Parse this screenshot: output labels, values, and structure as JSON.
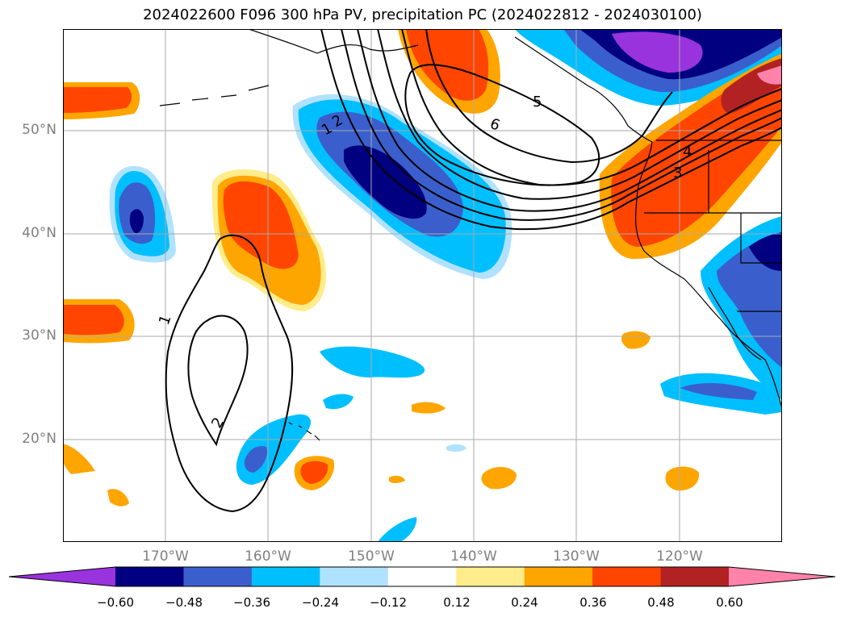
{
  "title": "2024022600 F096 300 hPa PV, precipitation PC (2024022812 - 2024030100)",
  "map": {
    "lat_labels": [
      "50°N",
      "40°N",
      "30°N",
      "20°N"
    ],
    "lon_labels": [
      "170°W",
      "160°W",
      "150°W",
      "140°W",
      "130°W",
      "120°W"
    ],
    "pv_contour_labels": [
      "1",
      "2",
      "5",
      "6",
      "4",
      "3",
      "1",
      "2"
    ]
  },
  "colorbar": {
    "ticks": [
      "−0.60",
      "−0.48",
      "−0.36",
      "−0.24",
      "−0.12",
      "0.12",
      "0.24",
      "0.36",
      "0.48",
      "0.60"
    ],
    "colors": [
      "#9933dd",
      "#000080",
      "#3a5fcd",
      "#00bfff",
      "#b0e2ff",
      "#ffffff",
      "#ffec8b",
      "#ffa500",
      "#ff4500",
      "#b22222",
      "#ff82ab"
    ]
  }
}
